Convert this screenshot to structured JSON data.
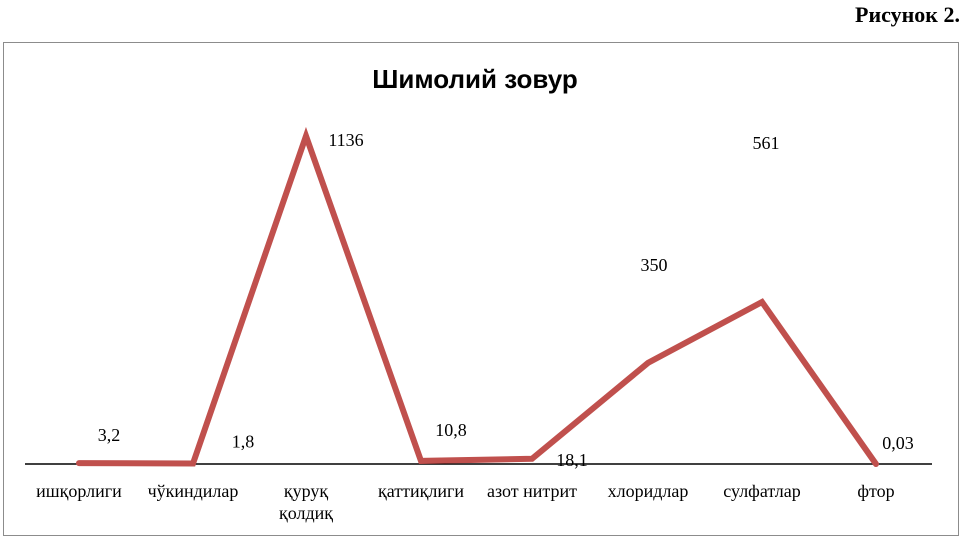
{
  "figure_caption": "Рисунок 2.",
  "chart_data": {
    "type": "line",
    "title": "Шимолий зовур",
    "categories": [
      [
        "ишқорлиги"
      ],
      [
        "чўкиндилар"
      ],
      [
        "қуруқ",
        "қолдиқ"
      ],
      [
        "қаттиқлиги"
      ],
      [
        "азот нитрит"
      ],
      [
        "хлоридлар"
      ],
      [
        "сулфатлар"
      ],
      [
        "фтор"
      ]
    ],
    "values": [
      3.2,
      1.8,
      1136,
      10.8,
      18.1,
      350,
      561,
      0.03
    ],
    "data_labels": [
      "3,2",
      "1,8",
      "1136",
      "10,8",
      "18,1",
      "350",
      "561",
      "0,03"
    ],
    "ylim": [
      0,
      1136
    ],
    "grid": false,
    "legend": "none",
    "line_color": "#c0504d",
    "axis_color": "#000000"
  }
}
